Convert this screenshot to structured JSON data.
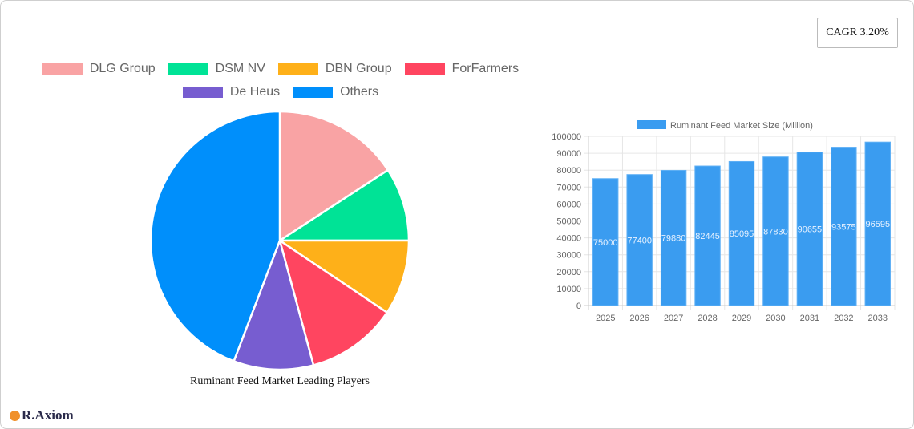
{
  "cagr_label": "CAGR 3.20%",
  "brand": "R.Axiom",
  "chart_data": [
    {
      "type": "pie",
      "title": "Ruminant Feed Market Leading Players",
      "legend_position": "top",
      "labels": [
        "DLG Group",
        "DSM NV",
        "DBN Group",
        "ForFarmers",
        "De Heus",
        "Others"
      ],
      "values": [
        15.8,
        9.2,
        9.4,
        11.4,
        10.0,
        44.2
      ],
      "colors": [
        "#f9a3a4",
        "#00e396",
        "#feb019",
        "#ff4560",
        "#775dd0",
        "#008ffb"
      ]
    },
    {
      "type": "bar",
      "series": [
        {
          "name": "Ruminant Feed Market Size (Million)",
          "values": [
            75000,
            77400,
            79880,
            82445,
            85095,
            87830,
            90655,
            93575,
            96595
          ]
        }
      ],
      "categories": [
        "2025",
        "2026",
        "2027",
        "2028",
        "2029",
        "2030",
        "2031",
        "2032",
        "2033"
      ],
      "ylim": [
        0,
        100000
      ],
      "yticks": [
        "0",
        "10000",
        "20000",
        "30000",
        "40000",
        "50000",
        "60000",
        "70000",
        "80000",
        "90000",
        "100000"
      ],
      "grid": true,
      "legend_position": "top",
      "color": "#3a9cf0"
    }
  ]
}
